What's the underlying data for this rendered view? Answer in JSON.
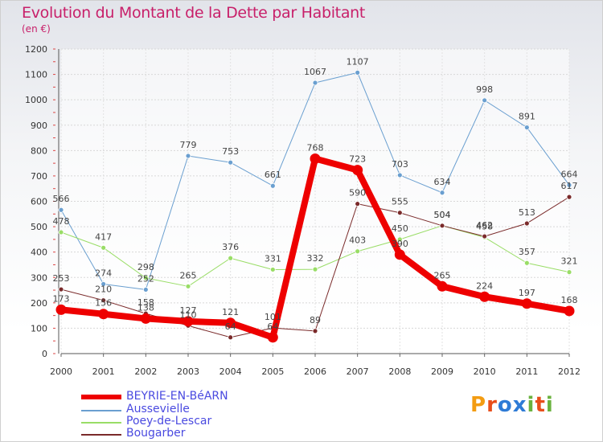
{
  "header": {
    "title": "Evolution du Montant de la Dette par Habitant",
    "subtitle": "(en €)"
  },
  "logo": {
    "letters": [
      "P",
      "r",
      "o",
      "x",
      "i",
      "t",
      "i"
    ],
    "colors": [
      "#f39c12",
      "#e84e1b",
      "#2e7bd6",
      "#2e7bd6",
      "#6ab23e",
      "#e84e1b",
      "#6ab23e"
    ]
  },
  "chart_data": {
    "type": "line",
    "title": "Evolution du Montant de la Dette par Habitant",
    "ylabel": "(en €)",
    "x": [
      "2000",
      "2001",
      "2002",
      "2003",
      "2004",
      "2005",
      "2006",
      "2007",
      "2008",
      "2009",
      "2010",
      "2011",
      "2012"
    ],
    "yticks": [
      "0",
      "100",
      "200",
      "300",
      "400",
      "500",
      "600",
      "700",
      "800",
      "900",
      "1000",
      "1100",
      "1200"
    ],
    "ylim": [
      0,
      1200
    ],
    "grid": true,
    "legend_position": "bottom-left",
    "series": [
      {
        "name": "BEYRIE-EN-BéARN",
        "color": "#ee0000",
        "width": 8,
        "values": [
          173,
          156,
          138,
          127,
          121,
          64,
          768,
          723,
          390,
          265,
          224,
          197,
          168
        ],
        "labels": [
          "173",
          "156",
          "138",
          "127",
          "121",
          "64",
          "768",
          "723",
          "390",
          "265",
          "224",
          "197",
          "168"
        ]
      },
      {
        "name": "Aussevielle",
        "color": "#6a9fd0",
        "width": 1,
        "values": [
          566,
          274,
          252,
          779,
          753,
          661,
          1067,
          1107,
          703,
          634,
          998,
          891,
          664
        ],
        "labels": [
          "566",
          "274",
          "252",
          "779",
          "753",
          "661",
          "1067",
          "1107",
          "703",
          "634",
          "998",
          "891",
          "664"
        ]
      },
      {
        "name": "Poey-de-Lescar",
        "color": "#99dd66",
        "width": 1,
        "values": [
          478,
          417,
          298,
          265,
          376,
          331,
          332,
          403,
          450,
          504,
          458,
          357,
          321
        ],
        "labels": [
          "478",
          "417",
          "298",
          "265",
          "376",
          "331",
          "332",
          "403",
          "450",
          "504",
          "458",
          "357",
          "321"
        ]
      },
      {
        "name": "Bougarber",
        "color": "#7a2a2a",
        "width": 1,
        "values": [
          253,
          210,
          158,
          110,
          64,
          101,
          89,
          590,
          555,
          504,
          462,
          513,
          617
        ],
        "labels": [
          "253",
          "210",
          "158",
          "110",
          "64",
          "101",
          "89",
          "590",
          "555",
          "504",
          "462",
          "513",
          "617"
        ]
      }
    ]
  }
}
